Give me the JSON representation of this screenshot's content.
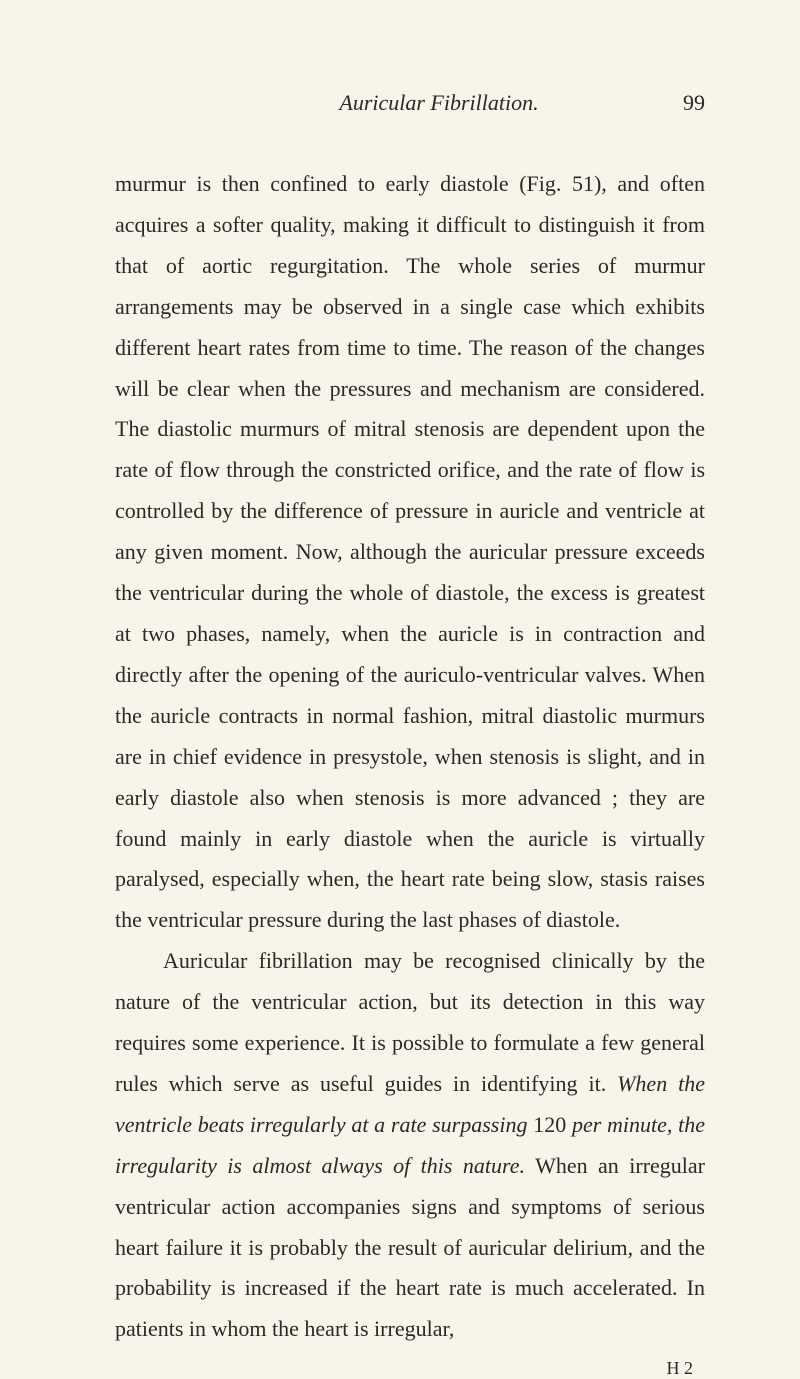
{
  "header": {
    "title": "Auricular Fibrillation.",
    "pageNumber": "99"
  },
  "paragraphs": {
    "p1": {
      "text": "murmur is then confined to early diastole (Fig. 51), and often acquires a softer quality, making it difficult to distinguish it from that of aortic regurgitation. The whole series of murmur arrangements may be observed in a single case which exhibits different heart rates from time to time. The reason of the changes will be clear when the pressures and mechanism are considered. The dia­stolic murmurs of mitral stenosis are dependent upon the rate of flow through the constricted orifice, and the rate of flow is controlled by the difference of pressure in auricle and ventricle at any given moment. Now, although the auricular pressure exceeds the ventricular during the whole of diastole, the excess is greatest at two phases, namely, when the auricle is in contraction and directly after the opening of the auriculo-ventricular valves. When the auricle contracts in normal fashion, mitral diastolic murmurs are in chief evidence in presystole, when stenosis is slight, and in early diastole also when stenosis is more advanced ; they are found mainly in early diastole when the auricle is virtually paralysed, especially when, the heart rate being slow, stasis raises the ventricular pressure during the last phases of diastole."
    },
    "p2": {
      "part1": "Auricular fibrillation may be recognised clinically by the nature of the ventricular action, but its detection in this way requires some experience. It is possible to formulate a few general rules which serve as useful guides in identifying it. ",
      "italic1": "When the ventricle beats irregularly at a rate surpassing",
      "part2": " 120 ",
      "italic2": "per minute, the irregularity is almost always of this nature.",
      "part3": " When an irregular ventricular action accompanies signs and symptoms of serious heart failure it is probably the result of auricular delirium, and the probability is increased if the heart rate is much accelerated. In patients in whom the heart is irregular,"
    }
  },
  "footer": {
    "signature": "H 2"
  },
  "styling": {
    "backgroundColor": "#f8f4ea",
    "textColor": "#2a2a24",
    "fontSize": 22,
    "lineHeight": 1.86,
    "pageWidth": 800,
    "pageHeight": 1355
  }
}
